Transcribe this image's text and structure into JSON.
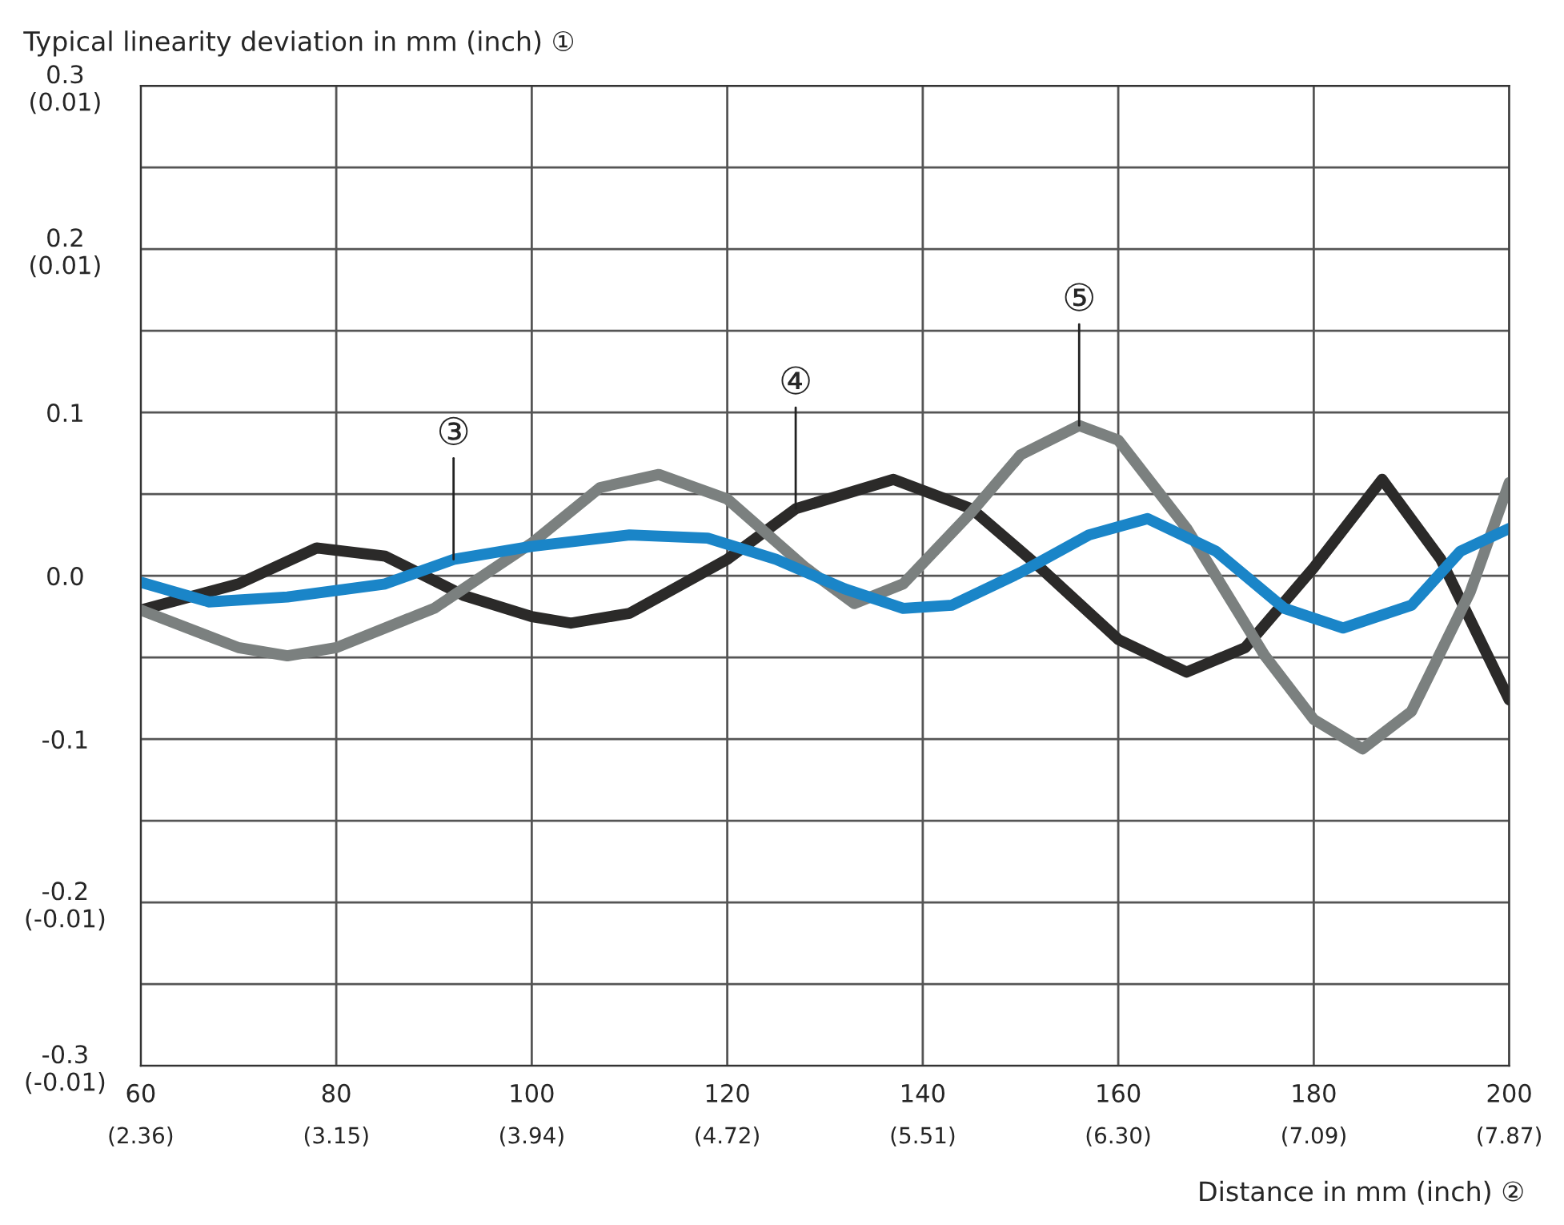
{
  "chart_data": {
    "type": "line",
    "ylabel": "Typical linearity deviation in mm (inch) ①",
    "xlabel": "Distance in mm (inch) ②",
    "xlim": [
      60,
      200
    ],
    "xticks": [
      60,
      80,
      100,
      120,
      140,
      160,
      180,
      200
    ],
    "x2lim": [
      2.362,
      7.874
    ],
    "x2ticks": [
      {
        "value": 2.362,
        "label": "(2.36)"
      },
      {
        "value": 3.15,
        "label": "(3.15)"
      },
      {
        "value": 3.937,
        "label": "(3.94)"
      },
      {
        "value": 4.724,
        "label": "(4.72)"
      },
      {
        "value": 5.512,
        "label": "(5.51)"
      },
      {
        "value": 6.299,
        "label": "(6.30)"
      },
      {
        "value": 7.087,
        "label": "(7.09)"
      },
      {
        "value": 7.874,
        "label": "(7.87)"
      }
    ],
    "ylim": [
      -0.3,
      0.3
    ],
    "yticks": [
      {
        "value": -0.3,
        "label": "-0.3\n(-0.01)"
      },
      {
        "value": -0.25,
        "label": null
      },
      {
        "value": -0.2,
        "label": "-0.2\n(-0.01)"
      },
      {
        "value": -0.15,
        "label": null
      },
      {
        "value": -0.1,
        "label": "-0.1"
      },
      {
        "value": -0.05,
        "label": null
      },
      {
        "value": 0.0,
        "label": "0.0"
      },
      {
        "value": 0.05,
        "label": null
      },
      {
        "value": 0.1,
        "label": "0.1"
      },
      {
        "value": 0.15,
        "label": null
      },
      {
        "value": 0.2,
        "label": "0.2\n(0.01)"
      },
      {
        "value": 0.25,
        "label": null
      },
      {
        "value": 0.3,
        "label": "0.3\n(0.01)"
      }
    ],
    "grid": true,
    "legend": false,
    "marker": "none",
    "line_style": "solid",
    "series": [
      {
        "color": "#2b2a29",
        "x": [
          60,
          70,
          78,
          85,
          93,
          100,
          104,
          110,
          120,
          127,
          137,
          145,
          152,
          160,
          167,
          173,
          180,
          187,
          193,
          200
        ],
        "values": [
          -0.021,
          -0.005,
          0.017,
          0.012,
          -0.012,
          -0.025,
          -0.029,
          -0.023,
          0.01,
          0.041,
          0.059,
          0.041,
          0.005,
          -0.039,
          -0.059,
          -0.044,
          0.005,
          0.059,
          0.01,
          -0.076
        ]
      },
      {
        "color": "#7b807f",
        "x": [
          60,
          70,
          75,
          80,
          90,
          100,
          107,
          113,
          120,
          128,
          133,
          138,
          145,
          150,
          156,
          160,
          167,
          175,
          180,
          185,
          190,
          196,
          200
        ],
        "values": [
          -0.021,
          -0.044,
          -0.049,
          -0.044,
          -0.02,
          0.02,
          0.054,
          0.062,
          0.047,
          0.005,
          -0.017,
          -0.005,
          0.039,
          0.074,
          0.092,
          0.083,
          0.029,
          -0.049,
          -0.088,
          -0.106,
          -0.083,
          -0.01,
          0.057
        ]
      },
      {
        "color": "#1a85c8",
        "x": [
          60,
          67,
          75,
          85,
          92,
          100,
          110,
          118,
          125,
          132,
          138,
          143,
          150,
          157,
          163,
          170,
          177,
          183,
          190,
          195,
          200
        ],
        "values": [
          -0.004,
          -0.016,
          -0.013,
          -0.005,
          0.01,
          0.018,
          0.025,
          0.023,
          0.01,
          -0.008,
          -0.02,
          -0.018,
          0.002,
          0.025,
          0.035,
          0.015,
          -0.02,
          -0.032,
          -0.018,
          0.015,
          0.029
        ]
      }
    ],
    "annotations": [
      {
        "text": "③",
        "x": 92,
        "y": 0.01
      },
      {
        "text": "④",
        "x": 127,
        "y": 0.041
      },
      {
        "text": "⑤",
        "x": 156,
        "y": 0.092
      }
    ]
  }
}
